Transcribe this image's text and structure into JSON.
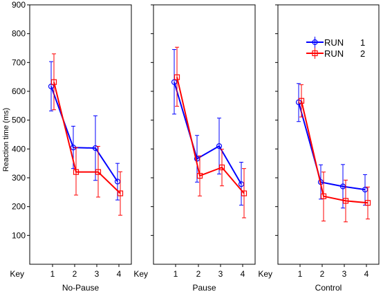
{
  "chart_data": {
    "type": "line",
    "ylabel": "Reaction time (ms)",
    "ylim": [
      0,
      900
    ],
    "yticks": [
      100,
      200,
      300,
      400,
      500,
      600,
      700,
      800,
      900
    ],
    "x_axis_title": "Key",
    "x": [
      1,
      2,
      3,
      4
    ],
    "grid": false,
    "legend": {
      "placement": "top-right of Control panel",
      "entries": [
        {
          "label": "RUN",
          "value": "1",
          "color": "#0000ff",
          "marker": "circle"
        },
        {
          "label": "RUN",
          "value": "2",
          "color": "#ff0000",
          "marker": "square"
        }
      ]
    },
    "panels": [
      {
        "label": "No-Pause",
        "series": [
          {
            "name": "RUN 1",
            "color": "#0000ff",
            "values": [
              617,
              405,
              403,
              287
            ],
            "err_low": [
              532,
              332,
              291,
              223
            ],
            "err_high": [
              703,
              479,
              515,
              350
            ]
          },
          {
            "name": "RUN 2",
            "color": "#ff0000",
            "values": [
              632,
              320,
              320,
              246
            ],
            "err_low": [
              536,
              240,
              233,
              170
            ],
            "err_high": [
              730,
              405,
              409,
              321
            ]
          }
        ]
      },
      {
        "label": "Pause",
        "series": [
          {
            "name": "RUN 1",
            "color": "#0000ff",
            "values": [
              632,
              366,
              410,
              278
            ],
            "err_low": [
              521,
              285,
              313,
              205
            ],
            "err_high": [
              745,
              447,
              507,
              354
            ]
          },
          {
            "name": "RUN 2",
            "color": "#ff0000",
            "values": [
              649,
              307,
              336,
              246
            ],
            "err_low": [
              548,
              237,
              272,
              161
            ],
            "err_high": [
              753,
              376,
              399,
              332
            ]
          }
        ]
      },
      {
        "label": "Control",
        "series": [
          {
            "name": "RUN 1",
            "color": "#0000ff",
            "values": [
              562,
              285,
              270,
              259
            ],
            "err_low": [
              495,
              226,
              195,
              205
            ],
            "err_high": [
              627,
              345,
              346,
              311
            ]
          },
          {
            "name": "RUN 2",
            "color": "#ff0000",
            "values": [
              567,
              236,
              220,
              213
            ],
            "err_low": [
              511,
              150,
              147,
              157
            ],
            "err_high": [
              623,
              320,
              292,
              268
            ]
          }
        ]
      }
    ]
  }
}
